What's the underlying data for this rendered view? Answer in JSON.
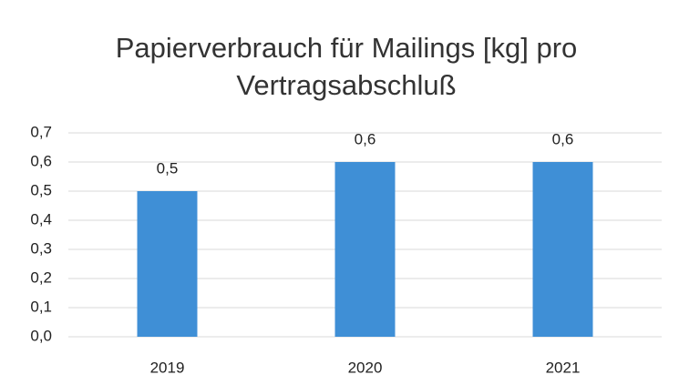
{
  "chart_data": {
    "type": "bar",
    "title": "Papierverbrauch für Mailings [kg] pro Vertragsabschluß",
    "categories": [
      "2019",
      "2020",
      "2021"
    ],
    "values": [
      0.5,
      0.6,
      0.6
    ],
    "value_labels": [
      "0,5",
      "0,6",
      "0,6"
    ],
    "color": "#3f8fd6",
    "ylim": [
      0,
      0.7
    ],
    "yticks": [
      {
        "value": 0,
        "label": "0,0"
      },
      {
        "value": 0.1,
        "label": "0,1"
      },
      {
        "value": 0.2,
        "label": "0,2"
      },
      {
        "value": 0.3,
        "label": "0,3"
      },
      {
        "value": 0.4,
        "label": "0,4"
      },
      {
        "value": 0.5,
        "label": "0,5"
      },
      {
        "value": 0.6,
        "label": "0,6"
      },
      {
        "value": 0.7,
        "label": "0,7"
      }
    ],
    "grid": true
  }
}
